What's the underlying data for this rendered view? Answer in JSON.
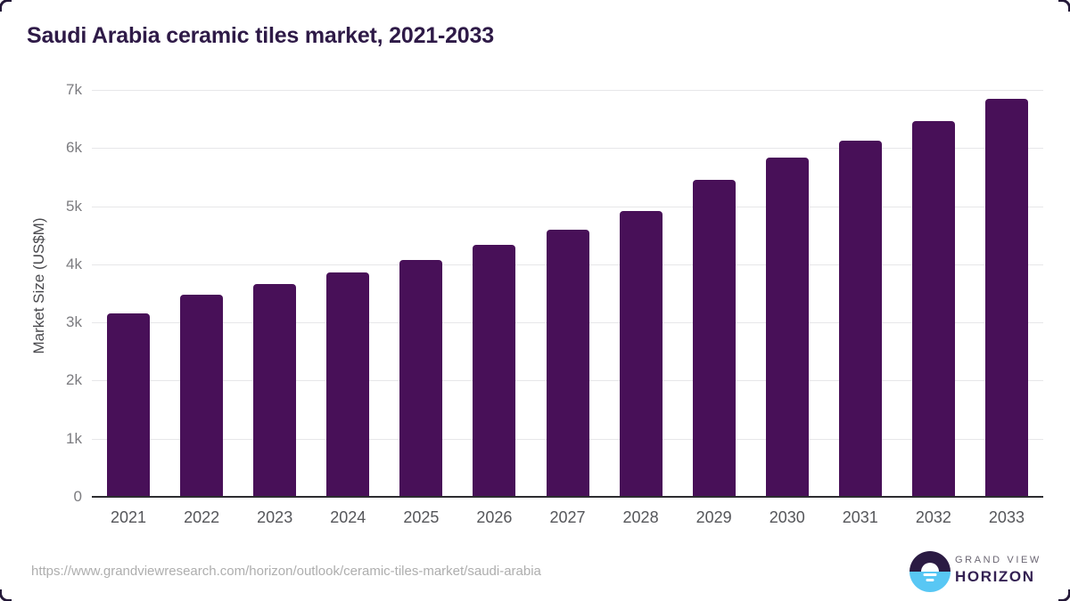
{
  "title": "Saudi Arabia ceramic tiles market, 2021-2033",
  "source_url": "https://www.grandviewresearch.com/horizon/outlook/ceramic-tiles-market/saudi-arabia",
  "logo": {
    "line1": "GRAND VIEW",
    "line2": "HORIZON"
  },
  "colors": {
    "bar": "#481058",
    "title": "#2e1a47",
    "gridline": "#e7e7e9",
    "axis_line": "#2d2d30",
    "logo_top": "#2b1b43",
    "logo_bottom": "#58c7f4"
  },
  "chart_data": {
    "type": "bar",
    "title": "Saudi Arabia ceramic tiles market, 2021-2033",
    "categories": [
      "2021",
      "2022",
      "2023",
      "2024",
      "2025",
      "2026",
      "2027",
      "2028",
      "2029",
      "2030",
      "2031",
      "2032",
      "2033"
    ],
    "values": [
      3150,
      3470,
      3660,
      3860,
      4080,
      4330,
      4600,
      4920,
      5455,
      5830,
      6120,
      6460,
      6845
    ],
    "xlabel": "",
    "ylabel": "Market Size (US$M)",
    "ylim": [
      0,
      7000
    ],
    "ytick_step": 1000,
    "ytick_labels": [
      "0",
      "1k",
      "2k",
      "3k",
      "4k",
      "5k",
      "6k",
      "7k"
    ],
    "grid": true,
    "legend": false,
    "bar_color": "#481058"
  }
}
